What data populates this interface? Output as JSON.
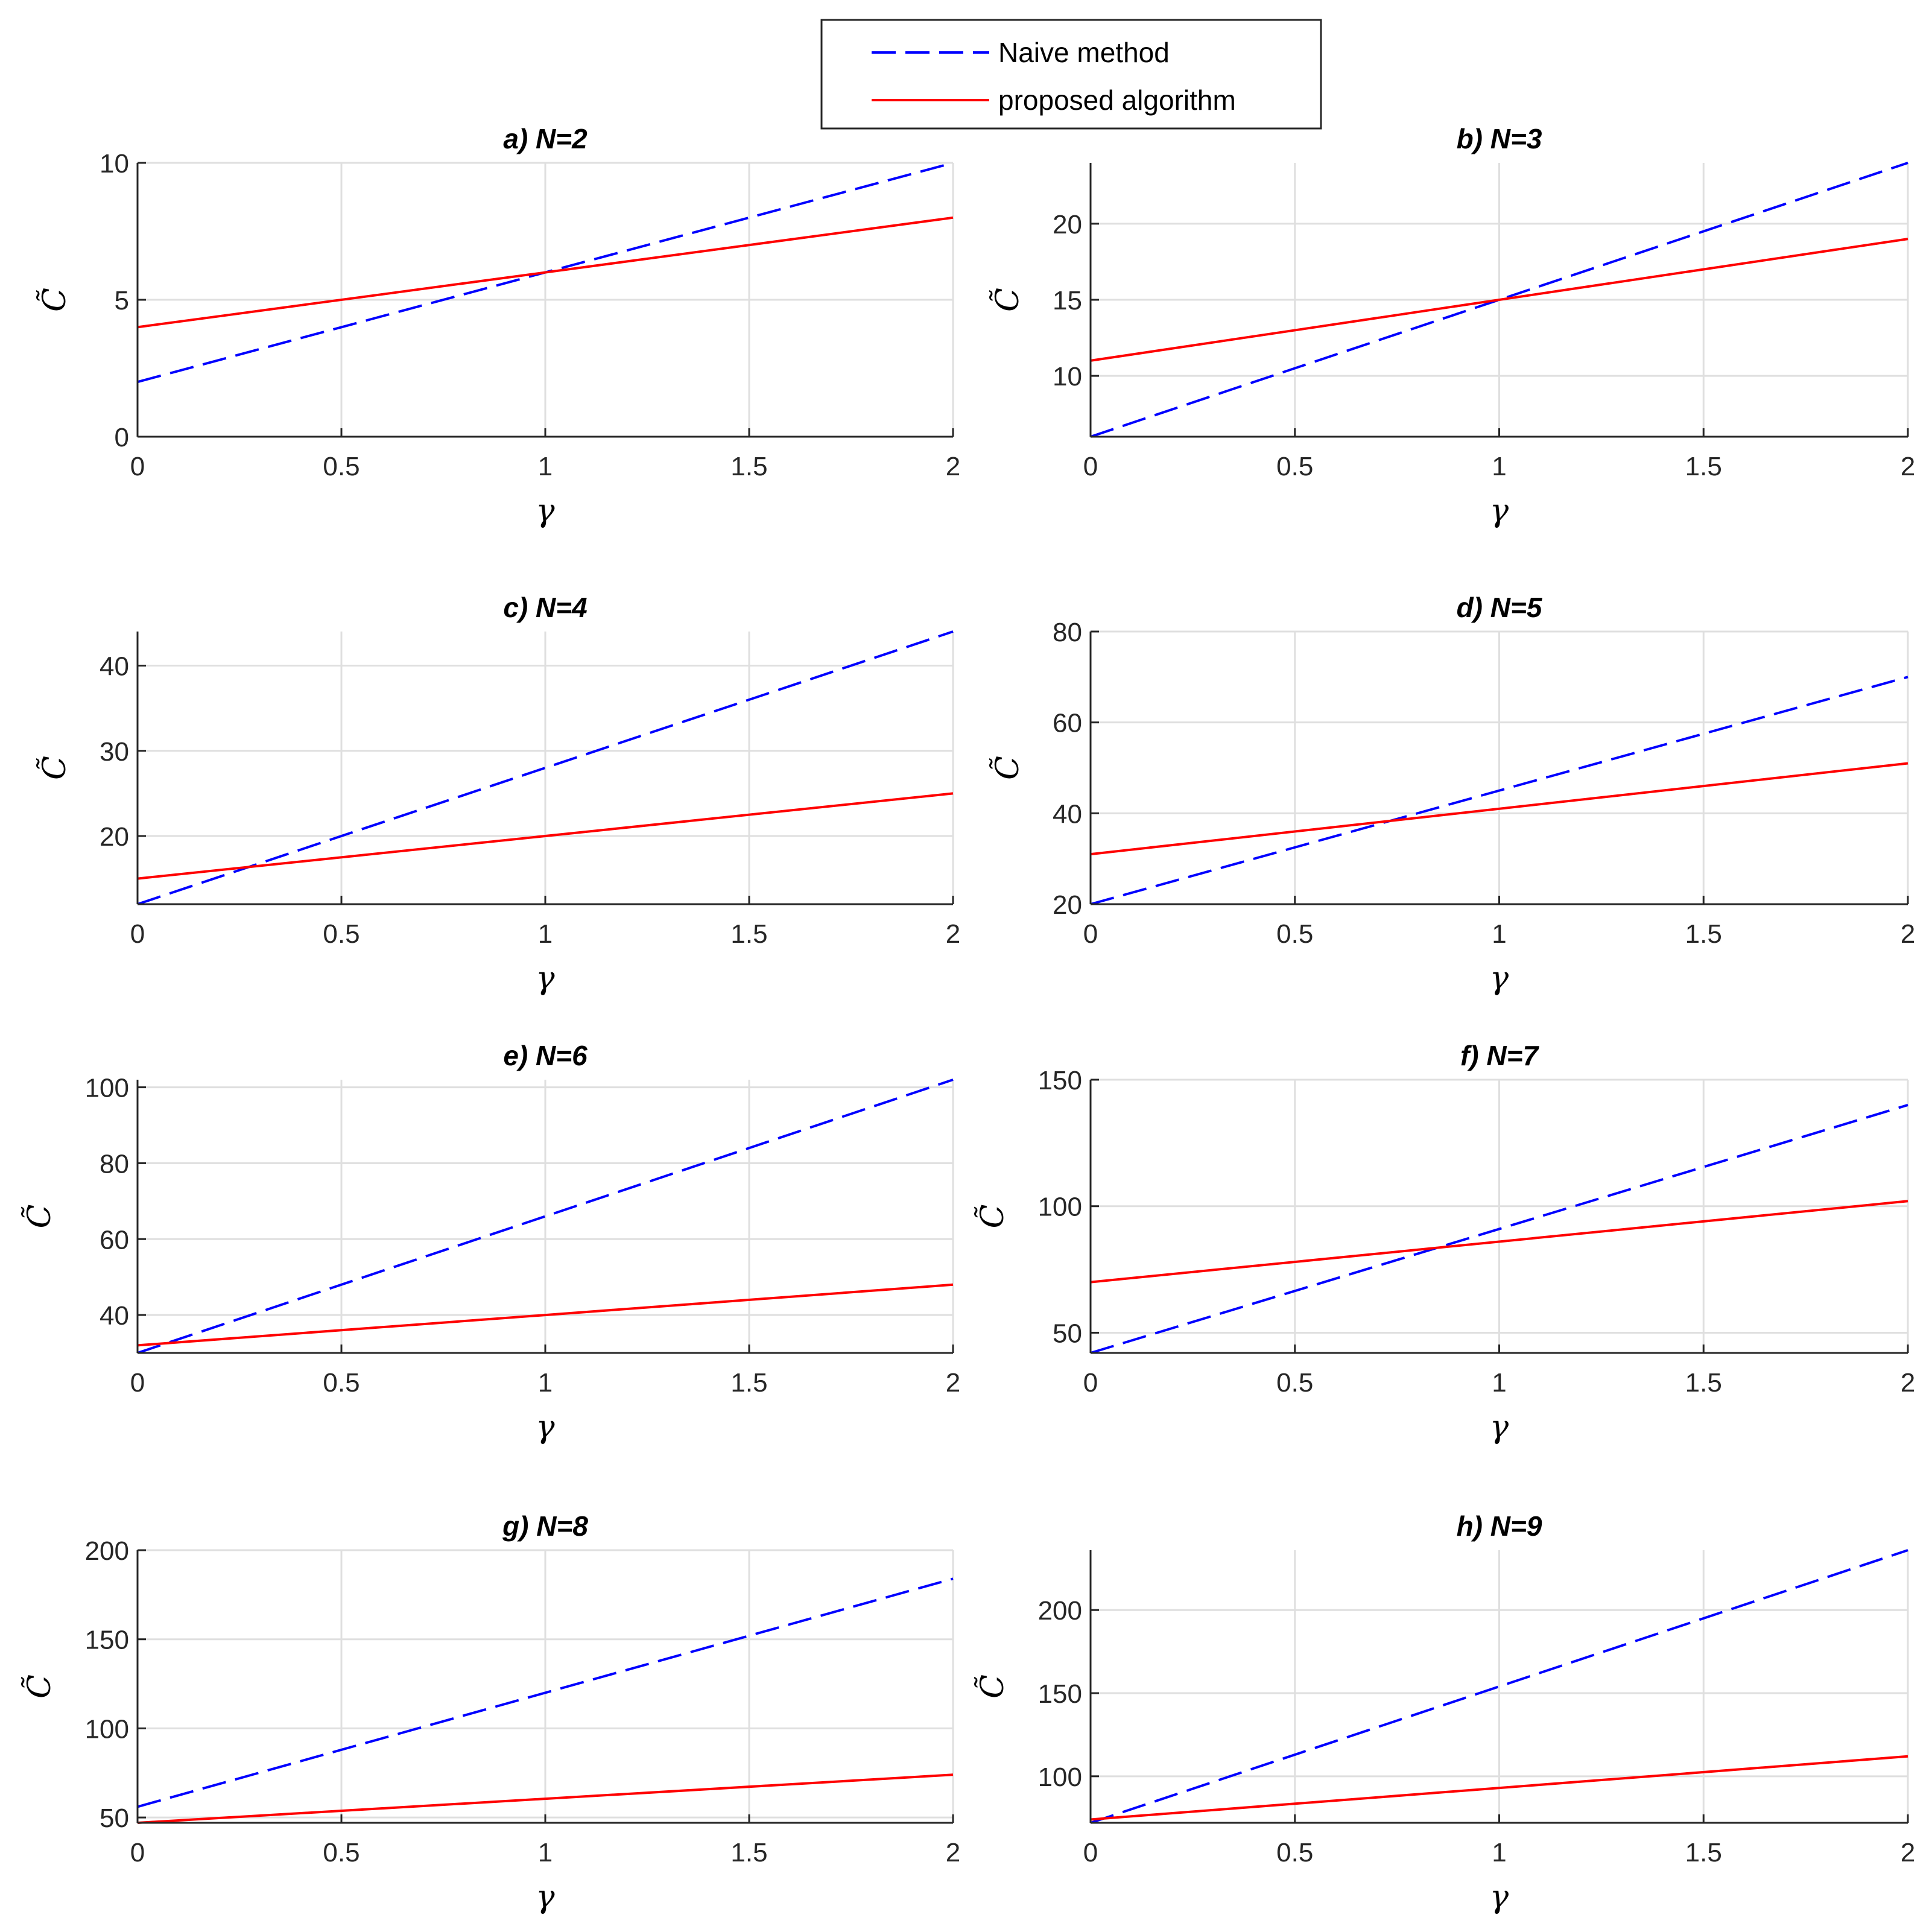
{
  "colors": {
    "naive": "#0000ff",
    "proposed": "#ff0000",
    "grid": "#dfdfdf",
    "axis": "#262626"
  },
  "legend": {
    "entries": [
      "Naive method",
      "proposed algorithm"
    ]
  },
  "chart_data": [
    {
      "type": "line",
      "title": "a) N=2",
      "xlabel": "γ",
      "ylabel": "C̃",
      "xlim": [
        0,
        2
      ],
      "ylim": [
        0,
        10
      ],
      "xticks": [
        0,
        0.5,
        1,
        1.5,
        2
      ],
      "yticks": [
        0,
        5,
        10
      ],
      "x": [
        0,
        2
      ],
      "series": [
        {
          "name": "Naive method",
          "values": [
            2,
            10
          ]
        },
        {
          "name": "proposed algorithm",
          "values": [
            4,
            8
          ]
        }
      ]
    },
    {
      "type": "line",
      "title": "b) N=3",
      "xlabel": "γ",
      "ylabel": "C̃",
      "xlim": [
        0,
        2
      ],
      "ylim": [
        6,
        24
      ],
      "xticks": [
        0,
        0.5,
        1,
        1.5,
        2
      ],
      "yticks": [
        10,
        15,
        20
      ],
      "x": [
        0,
        2
      ],
      "series": [
        {
          "name": "Naive method",
          "values": [
            6,
            24
          ]
        },
        {
          "name": "proposed algorithm",
          "values": [
            11,
            19
          ]
        }
      ]
    },
    {
      "type": "line",
      "title": "c) N=4",
      "xlabel": "γ",
      "ylabel": "C̃",
      "xlim": [
        0,
        2
      ],
      "ylim": [
        12,
        44
      ],
      "xticks": [
        0,
        0.5,
        1,
        1.5,
        2
      ],
      "yticks": [
        20,
        30,
        40
      ],
      "x": [
        0,
        2
      ],
      "series": [
        {
          "name": "Naive method",
          "values": [
            12,
            44
          ]
        },
        {
          "name": "proposed algorithm",
          "values": [
            15,
            25
          ]
        }
      ]
    },
    {
      "type": "line",
      "title": "d) N=5",
      "xlabel": "γ",
      "ylabel": "C̃",
      "xlim": [
        0,
        2
      ],
      "ylim": [
        20,
        80
      ],
      "xticks": [
        0,
        0.5,
        1,
        1.5,
        2
      ],
      "yticks": [
        20,
        40,
        60,
        80
      ],
      "x": [
        0,
        2
      ],
      "series": [
        {
          "name": "Naive method",
          "values": [
            20,
            70
          ]
        },
        {
          "name": "proposed algorithm",
          "values": [
            31,
            51
          ]
        }
      ]
    },
    {
      "type": "line",
      "title": "e) N=6",
      "xlabel": "γ",
      "ylabel": "C̃",
      "xlim": [
        0,
        2
      ],
      "ylim": [
        30,
        102
      ],
      "xticks": [
        0,
        0.5,
        1,
        1.5,
        2
      ],
      "yticks": [
        40,
        60,
        80,
        100
      ],
      "x": [
        0,
        2
      ],
      "series": [
        {
          "name": "Naive method",
          "values": [
            30,
            102
          ]
        },
        {
          "name": "proposed algorithm",
          "values": [
            32,
            48
          ]
        }
      ]
    },
    {
      "type": "line",
      "title": "f) N=7",
      "xlabel": "γ",
      "ylabel": "C̃",
      "xlim": [
        0,
        2
      ],
      "ylim": [
        42,
        150
      ],
      "xticks": [
        0,
        0.5,
        1,
        1.5,
        2
      ],
      "yticks": [
        50,
        100,
        150
      ],
      "x": [
        0,
        2
      ],
      "series": [
        {
          "name": "Naive method",
          "values": [
            42,
            140
          ]
        },
        {
          "name": "proposed algorithm",
          "values": [
            70,
            102
          ]
        }
      ]
    },
    {
      "type": "line",
      "title": "g) N=8",
      "xlabel": "γ",
      "ylabel": "C̃",
      "xlim": [
        0,
        2
      ],
      "ylim": [
        47,
        200
      ],
      "xticks": [
        0,
        0.5,
        1,
        1.5,
        2
      ],
      "yticks": [
        50,
        100,
        150,
        200
      ],
      "x": [
        0,
        2
      ],
      "series": [
        {
          "name": "Naive method",
          "values": [
            56,
            184
          ]
        },
        {
          "name": "proposed algorithm",
          "values": [
            47,
            74
          ]
        }
      ]
    },
    {
      "type": "line",
      "title": "h) N=9",
      "xlabel": "γ",
      "ylabel": "C̃",
      "xlim": [
        0,
        2
      ],
      "ylim": [
        72,
        236
      ],
      "xticks": [
        0,
        0.5,
        1,
        1.5,
        2
      ],
      "yticks": [
        100,
        150,
        200
      ],
      "x": [
        0,
        2
      ],
      "series": [
        {
          "name": "Naive method",
          "values": [
            72,
            236
          ]
        },
        {
          "name": "proposed algorithm",
          "values": [
            74,
            112
          ]
        }
      ]
    }
  ]
}
